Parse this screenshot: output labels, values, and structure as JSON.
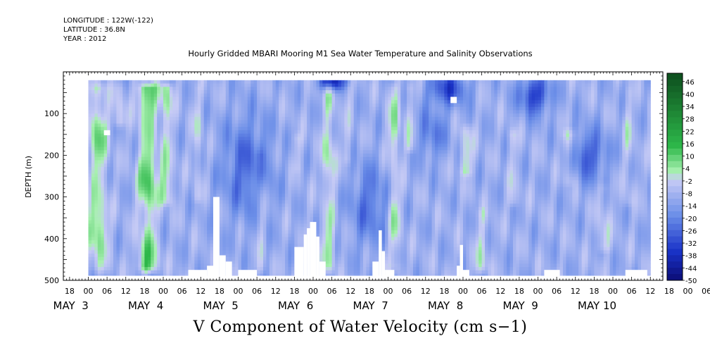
{
  "header": {
    "longitude": "LONGITUDE : 122W(-122)",
    "latitude": "LATITUDE : 36.8N",
    "year": "YEAR : 2012"
  },
  "colors": {
    "max": "#0d4d1d",
    "high": "#2db84a",
    "light_green": "#a8f0b0",
    "near_zero": "#c7cbf5",
    "blue_mid": "#6b8ee8",
    "blue_dark": "#1a33c8",
    "min": "#0a0a70",
    "missing": "#ffffff"
  },
  "chart_data": {
    "type": "heatmap",
    "title": "Hourly Gridded MBARI Mooring M1 Sea Water Temperature and Salinity Observations",
    "xlabel": "V Component of Water Velocity (cm s−1)",
    "ylabel": "DEPTH (m)",
    "x_hours": [
      -8,
      184
    ],
    "y_range": [
      0,
      500
    ],
    "y_ticks": [
      100,
      200,
      300,
      400,
      500
    ],
    "x_hour_ticks": [
      "18",
      "00",
      "06",
      "12",
      "18",
      "00",
      "06",
      "12",
      "18",
      "00",
      "06",
      "12",
      "18",
      "00",
      "06",
      "12",
      "18",
      "00",
      "06",
      "12",
      "18",
      "00",
      "06",
      "12",
      "18",
      "00",
      "06",
      "12",
      "18",
      "00",
      "06",
      "12",
      "18",
      "00",
      "06",
      "12"
    ],
    "x_day_labels": [
      {
        "label": "MAY  3",
        "hour": 0
      },
      {
        "label": "MAY  4",
        "hour": 24
      },
      {
        "label": "MAY  5",
        "hour": 48
      },
      {
        "label": "MAY  6",
        "hour": 72
      },
      {
        "label": "MAY  7",
        "hour": 96
      },
      {
        "label": "MAY  8",
        "hour": 120
      },
      {
        "label": "MAY  9",
        "hour": 144
      },
      {
        "label": "MAY 10",
        "hour": 168
      }
    ],
    "colorbar": {
      "levels": [
        46,
        40,
        34,
        28,
        22,
        16,
        10,
        4,
        -2,
        -8,
        -14,
        -20,
        -26,
        -32,
        -38,
        -44,
        -50
      ],
      "min": -50,
      "max": 50,
      "step": 3
    },
    "data_extent_hours": [
      0,
      180
    ],
    "data_extent_depth": [
      20,
      488
    ],
    "positive_bands": [
      {
        "hour": 3,
        "width": 3,
        "amp": 18,
        "top": 20,
        "bottom": 488
      },
      {
        "hour": 10,
        "width": 2,
        "amp": 10,
        "top": 20,
        "bottom": 140
      },
      {
        "hour": 19,
        "width": 3,
        "amp": 22,
        "top": 20,
        "bottom": 488
      },
      {
        "hour": 25,
        "width": 2,
        "amp": 14,
        "top": 20,
        "bottom": 330
      },
      {
        "hour": 35,
        "width": 1.5,
        "amp": 8,
        "top": 20,
        "bottom": 320
      },
      {
        "hour": 55,
        "width": 1.5,
        "amp": 8,
        "top": 200,
        "bottom": 488
      },
      {
        "hour": 67,
        "width": 1.5,
        "amp": 8,
        "top": 140,
        "bottom": 250
      },
      {
        "hour": 77,
        "width": 2,
        "amp": 14,
        "top": 20,
        "bottom": 488
      },
      {
        "hour": 83,
        "width": 1.5,
        "amp": 6,
        "top": 20,
        "bottom": 230
      },
      {
        "hour": 98,
        "width": 2,
        "amp": 14,
        "top": 20,
        "bottom": 488
      },
      {
        "hour": 103,
        "width": 1.5,
        "amp": 9,
        "top": 20,
        "bottom": 200
      },
      {
        "hour": 121,
        "width": 2,
        "amp": 12,
        "top": 120,
        "bottom": 260
      },
      {
        "hour": 126,
        "width": 2,
        "amp": 10,
        "top": 320,
        "bottom": 488
      },
      {
        "hour": 136,
        "width": 1.5,
        "amp": 8,
        "top": 130,
        "bottom": 330
      },
      {
        "hour": 154,
        "width": 2,
        "amp": 12,
        "top": 130,
        "bottom": 280
      },
      {
        "hour": 165,
        "width": 2,
        "amp": 9,
        "top": 260,
        "bottom": 440
      },
      {
        "hour": 173,
        "width": 1.5,
        "amp": 7,
        "top": 30,
        "bottom": 330
      }
    ],
    "negative_patches": [
      {
        "hour": 78,
        "depth": 25,
        "rh": 4,
        "rd": 20,
        "amp": -30
      },
      {
        "hour": 115,
        "depth": 40,
        "rh": 6,
        "rd": 40,
        "amp": -22
      },
      {
        "hour": 143,
        "depth": 55,
        "rh": 5,
        "rd": 45,
        "amp": -24
      },
      {
        "hour": 51,
        "depth": 230,
        "rh": 8,
        "rd": 120,
        "amp": -16
      },
      {
        "hour": 90,
        "depth": 320,
        "rh": 6,
        "rd": 100,
        "amp": -14
      },
      {
        "hour": 160,
        "depth": 200,
        "rh": 6,
        "rd": 60,
        "amp": -18
      },
      {
        "hour": 110,
        "depth": 150,
        "rh": 5,
        "rd": 60,
        "amp": -12
      }
    ],
    "missing_regions": [
      {
        "h0": 32,
        "h1": 38,
        "d0": 475,
        "d1": 500
      },
      {
        "h0": 38,
        "h1": 40,
        "d0": 465,
        "d1": 500
      },
      {
        "h0": 40,
        "h1": 42,
        "d0": 300,
        "d1": 500
      },
      {
        "h0": 42,
        "h1": 44,
        "d0": 440,
        "d1": 500
      },
      {
        "h0": 44,
        "h1": 46,
        "d0": 455,
        "d1": 500
      },
      {
        "h0": 48,
        "h1": 54,
        "d0": 475,
        "d1": 500
      },
      {
        "h0": 66,
        "h1": 69,
        "d0": 420,
        "d1": 500
      },
      {
        "h0": 69,
        "h1": 70,
        "d0": 390,
        "d1": 500
      },
      {
        "h0": 70,
        "h1": 71,
        "d0": 375,
        "d1": 500
      },
      {
        "h0": 71,
        "h1": 73,
        "d0": 360,
        "d1": 500
      },
      {
        "h0": 73,
        "h1": 74,
        "d0": 395,
        "d1": 500
      },
      {
        "h0": 74,
        "h1": 76,
        "d0": 455,
        "d1": 500
      },
      {
        "h0": 91,
        "h1": 93,
        "d0": 455,
        "d1": 500
      },
      {
        "h0": 93,
        "h1": 94,
        "d0": 380,
        "d1": 500
      },
      {
        "h0": 94,
        "h1": 95,
        "d0": 430,
        "d1": 500
      },
      {
        "h0": 95,
        "h1": 98,
        "d0": 475,
        "d1": 500
      },
      {
        "h0": 118,
        "h1": 119,
        "d0": 465,
        "d1": 500
      },
      {
        "h0": 119,
        "h1": 120,
        "d0": 415,
        "d1": 500
      },
      {
        "h0": 120,
        "h1": 122,
        "d0": 475,
        "d1": 500
      },
      {
        "h0": 146,
        "h1": 151,
        "d0": 475,
        "d1": 500
      },
      {
        "h0": 172,
        "h1": 179,
        "d0": 475,
        "d1": 500
      },
      {
        "h0": 5,
        "h1": 7,
        "d0": 140,
        "d1": 152
      },
      {
        "h0": 116,
        "h1": 118,
        "d0": 60,
        "d1": 75
      }
    ]
  }
}
